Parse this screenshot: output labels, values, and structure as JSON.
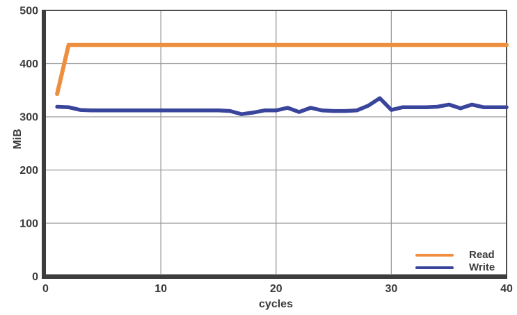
{
  "colors": {
    "background": "#FFFFFF",
    "grid": "#999999",
    "axis": "#3D3D3D",
    "frame": "#4D4D4D",
    "text": "#3B3B3B"
  },
  "chart_data": {
    "type": "line",
    "xlabel": "cycles",
    "ylabel": "MiB",
    "xlim": [
      0,
      40
    ],
    "ylim": [
      0,
      500
    ],
    "xticks": [
      0,
      10,
      20,
      30,
      40
    ],
    "yticks": [
      0,
      100,
      200,
      300,
      400,
      500
    ],
    "grid": true,
    "legend_position": "lower right",
    "x": [
      1,
      2,
      3,
      4,
      5,
      6,
      7,
      8,
      9,
      10,
      11,
      12,
      13,
      14,
      15,
      16,
      17,
      18,
      19,
      20,
      21,
      22,
      23,
      24,
      25,
      26,
      27,
      28,
      29,
      30,
      31,
      32,
      33,
      34,
      35,
      36,
      37,
      38,
      39,
      40
    ],
    "series": [
      {
        "name": "Read",
        "color": "#ED8F3E",
        "values": [
          343,
          435,
          435,
          435,
          435,
          435,
          435,
          435,
          435,
          435,
          435,
          435,
          435,
          435,
          435,
          435,
          435,
          435,
          435,
          435,
          435,
          435,
          435,
          435,
          435,
          435,
          435,
          435,
          435,
          435,
          435,
          435,
          435,
          435,
          435,
          435,
          435,
          435,
          435,
          435
        ]
      },
      {
        "name": "Write",
        "color": "#39449B",
        "values": [
          319,
          318,
          313,
          312,
          312,
          312,
          312,
          312,
          312,
          312,
          312,
          312,
          312,
          312,
          312,
          311,
          305,
          308,
          312,
          312,
          317,
          309,
          317,
          312,
          311,
          311,
          312,
          321,
          335,
          313,
          318,
          318,
          318,
          319,
          323,
          316,
          323,
          318,
          318,
          318
        ]
      }
    ]
  }
}
